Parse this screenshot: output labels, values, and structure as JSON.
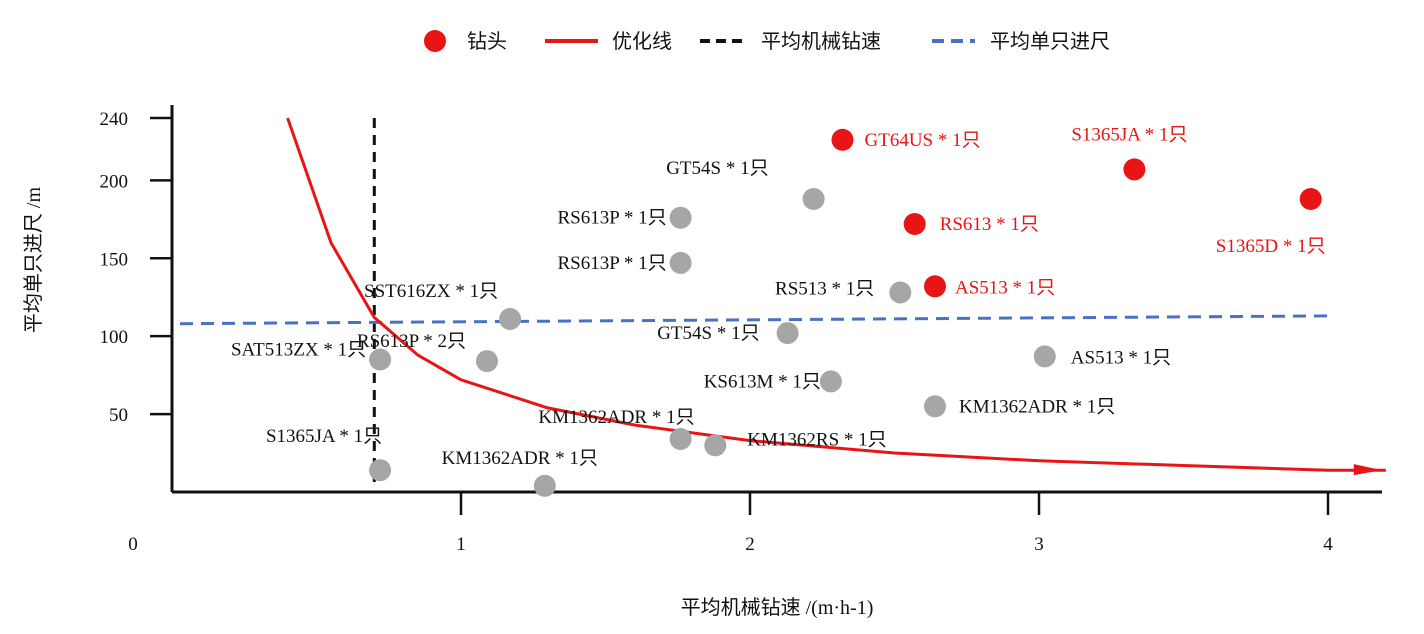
{
  "chart_data": {
    "type": "scatter",
    "xlabel": "平均机械钻速 /(m·h-1)",
    "ylabel": "平均单只进尺 /m",
    "x_ticks": [
      "1",
      "2",
      "3",
      "4"
    ],
    "y_ticks": [
      "50",
      "100",
      "150",
      "200",
      "240"
    ],
    "origin_label": "0",
    "xlim": [
      0,
      4.2
    ],
    "ylim": [
      0,
      250
    ],
    "legend": {
      "position": "top-center",
      "items": [
        {
          "label": "钻头",
          "kind": "marker",
          "color": "#e81416"
        },
        {
          "label": "优化线",
          "kind": "line",
          "color": "#e81416"
        },
        {
          "label": "平均机械钻速",
          "kind": "line",
          "color": "#111111"
        },
        {
          "label": "平均单只进尺",
          "kind": "line",
          "color": "#4a72c4"
        }
      ]
    },
    "colors": {
      "highlight": "#e81416",
      "normal": "#a6a6a6",
      "avg_rop": "#111111",
      "avg_footage": "#4a72c4"
    },
    "reference_lines": {
      "avg_rop_x": 0.7,
      "avg_footage_y": [
        108,
        113
      ]
    },
    "optimization_curve": {
      "x": [
        0.4,
        0.55,
        0.7,
        0.85,
        1.0,
        1.3,
        1.6,
        2.0,
        2.5,
        3.0,
        3.5,
        4.0,
        4.2
      ],
      "y": [
        240,
        160,
        112,
        88,
        72,
        54,
        43,
        33,
        25,
        20,
        17,
        14,
        14
      ]
    },
    "series": [
      {
        "name": "钻头",
        "group": "highlight",
        "points": [
          {
            "x": 2.32,
            "y": 226,
            "label": "GT64US * 1只"
          },
          {
            "x": 3.33,
            "y": 207,
            "label": "S1365JA * 1只"
          },
          {
            "x": 3.94,
            "y": 188,
            "label": "S1365D * 1只"
          },
          {
            "x": 2.57,
            "y": 172,
            "label": "RS613 * 1只"
          },
          {
            "x": 2.64,
            "y": 132,
            "label": "AS513 * 1只"
          }
        ]
      },
      {
        "group": "normal",
        "points": [
          {
            "x": 2.22,
            "y": 188,
            "label": "GT54S * 1只"
          },
          {
            "x": 1.76,
            "y": 176,
            "label": "RS613P * 1只"
          },
          {
            "x": 1.76,
            "y": 147,
            "label": "RS613P * 1只"
          },
          {
            "x": 2.52,
            "y": 128,
            "label": "RS513 * 1只"
          },
          {
            "x": 1.17,
            "y": 111,
            "label": "SST616ZX * 1只"
          },
          {
            "x": 2.13,
            "y": 102,
            "label": "GT54S * 1只"
          },
          {
            "x": 1.09,
            "y": 84,
            "label": "RS613P * 2只"
          },
          {
            "x": 0.72,
            "y": 85,
            "label": "SAT513ZX * 1只"
          },
          {
            "x": 3.02,
            "y": 87,
            "label": "AS513 * 1只"
          },
          {
            "x": 2.28,
            "y": 71,
            "label": "KS613M * 1只"
          },
          {
            "x": 2.64,
            "y": 55,
            "label": "KM1362ADR * 1只"
          },
          {
            "x": 1.76,
            "y": 34,
            "label": "KM1362ADR * 1只"
          },
          {
            "x": 1.88,
            "y": 30,
            "label": "KM1362RS * 1只"
          },
          {
            "x": 0.72,
            "y": 14,
            "label": "S1365JA * 1只"
          },
          {
            "x": 1.29,
            "y": 4,
            "label": "KM1362ADR * 1只"
          }
        ]
      }
    ]
  }
}
